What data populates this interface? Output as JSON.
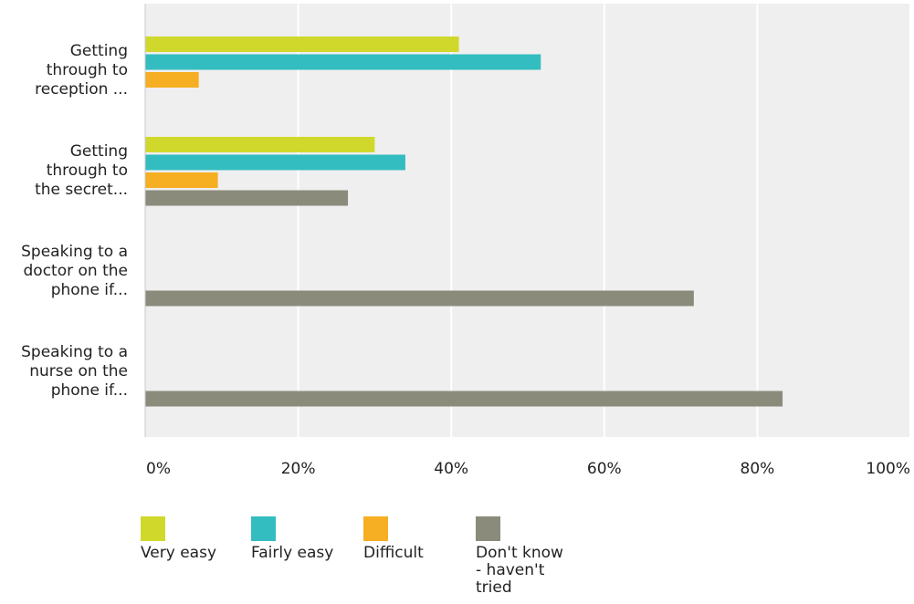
{
  "chart_data": {
    "type": "bar",
    "orientation": "horizontal",
    "categories": [
      [
        "Getting",
        "through to",
        "reception ..."
      ],
      [
        "Getting",
        "through to",
        "the secret..."
      ],
      [
        "Speaking to a",
        "doctor on the",
        "phone if..."
      ],
      [
        "Speaking to a",
        "nurse on the",
        "phone if..."
      ]
    ],
    "series": [
      {
        "name": "Very easy",
        "color": "#d0d92b",
        "values": [
          41,
          30,
          null,
          null
        ]
      },
      {
        "name": "Fairly easy",
        "color": "#34bdc0",
        "values": [
          51.7,
          34,
          null,
          null
        ]
      },
      {
        "name": "Difficult",
        "color": "#f6ae22",
        "values": [
          7,
          9.5,
          null,
          null
        ]
      },
      {
        "name": "Don't know\n- haven't\ntried",
        "color": "#8b8b7b",
        "values": [
          null,
          26.5,
          71.7,
          83.3
        ]
      }
    ],
    "xlim": [
      0,
      100
    ],
    "ticks": [
      "0%",
      "20%",
      "40%",
      "60%",
      "80%",
      "100%"
    ],
    "grid": true,
    "legend_position": "bottom-left"
  }
}
